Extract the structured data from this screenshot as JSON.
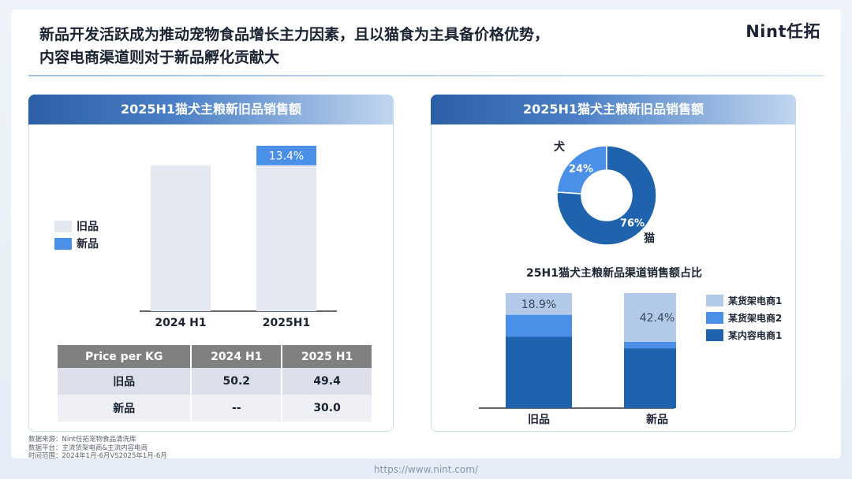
{
  "headline": {
    "line1": "新品开发活跃成为推动宠物食品增长主力因素，且以猫食为主具备价格优势，",
    "line2": "内容电商渠道则对于新品孵化贡献大"
  },
  "logo": "Nint任拓",
  "left_panel": {
    "title": "2025H1猫犬主粮新旧品销售额",
    "legend": {
      "old": "旧品",
      "new": "新品"
    },
    "table": {
      "headers": [
        "Price per KG",
        "2024 H1",
        "2025 H1"
      ],
      "rows": [
        {
          "label": "旧品",
          "v2024": "50.2",
          "v2025": "49.4"
        },
        {
          "label": "新品",
          "v2024": "--",
          "v2025": "30.0"
        }
      ]
    }
  },
  "right_panel": {
    "title": "2025H1猫犬主粮新旧品销售额",
    "subtitle": "25H1猫犬主粮新品渠道销售额占比",
    "legend": [
      "某货架电商1",
      "某货架电商2",
      "某内容电商1"
    ]
  },
  "chart_data": [
    {
      "type": "bar",
      "stacked": true,
      "categories": [
        "2024 H1",
        "2025H1"
      ],
      "series": [
        {
          "name": "旧品",
          "values": [
            100,
            100
          ]
        },
        {
          "name": "新品",
          "values": [
            0,
            13.4
          ]
        }
      ],
      "data_labels": [
        "",
        "13.4%"
      ],
      "colors": {
        "old": "#e3e8f1",
        "new": "#4a8fe8"
      }
    },
    {
      "type": "pie",
      "donut": true,
      "slices": [
        {
          "label": "犬",
          "value": 24,
          "display": "24%",
          "color": "#4a8fe8"
        },
        {
          "label": "猫",
          "value": 76,
          "display": "76%",
          "color": "#1f63ae"
        }
      ]
    },
    {
      "type": "bar",
      "stacked": true,
      "percent": true,
      "categories": [
        "旧品",
        "新品"
      ],
      "series": [
        {
          "name": "某内容电商1",
          "values": [
            62,
            52
          ],
          "color": "#1f63ae"
        },
        {
          "name": "某货架电商2",
          "values": [
            19.1,
            5.6
          ],
          "color": "#4a8fe8"
        },
        {
          "name": "某货架电商1",
          "values": [
            18.9,
            42.4
          ],
          "color": "#b3c9ea"
        }
      ],
      "data_labels": {
        "某货架电商1": [
          "18.9%",
          "42.4%"
        ]
      }
    }
  ],
  "footer": {
    "source": "数据来源：Nint任拓宠物食品清洗库",
    "platform": "数据平台：主流货架电商&主流内容电商",
    "period": "时间范围：2024年1月-6月VS2025年1月-6月",
    "url": "https://www.nint.com/"
  }
}
